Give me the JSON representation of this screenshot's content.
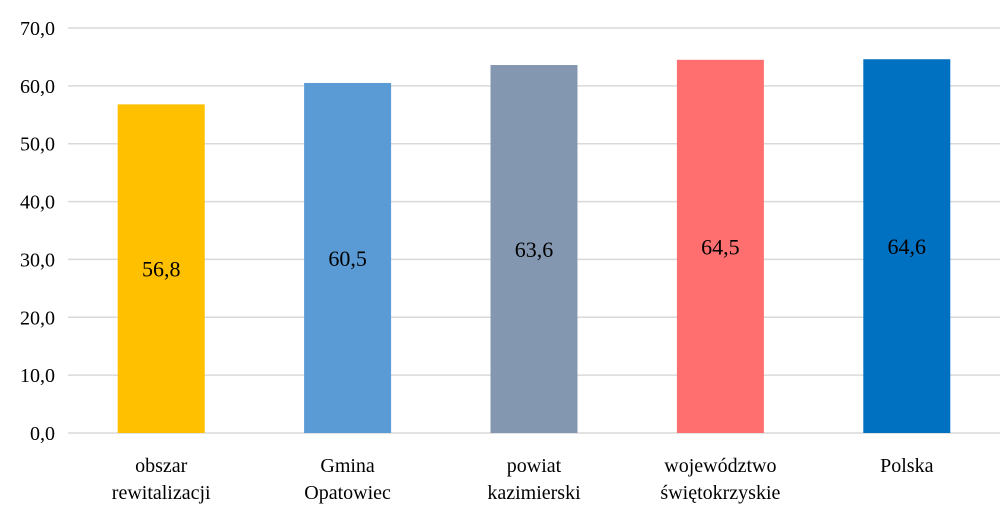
{
  "chart_data": {
    "type": "bar",
    "categories": [
      [
        "obszar",
        "rewitalizacji"
      ],
      [
        "Gmina",
        "Opatowiec"
      ],
      [
        "powiat",
        "kazimierski"
      ],
      [
        "województwo",
        "świętokrzyskie"
      ],
      [
        "Polska"
      ]
    ],
    "values": [
      56.8,
      60.5,
      63.6,
      64.5,
      64.6
    ],
    "value_labels": [
      "56,8",
      "60,5",
      "63,6",
      "64,5",
      "64,6"
    ],
    "colors": [
      "#ffc000",
      "#5b9bd5",
      "#8497b0",
      "#ff6f6f",
      "#0070c0"
    ],
    "ylim": [
      0,
      70
    ],
    "yticks": [
      0,
      10,
      20,
      30,
      40,
      50,
      60,
      70
    ],
    "ytick_labels": [
      "0,0",
      "10,0",
      "20,0",
      "30,0",
      "40,0",
      "50,0",
      "60,0",
      "70,0"
    ],
    "grid": true,
    "title": "",
    "xlabel": "",
    "ylabel": ""
  }
}
